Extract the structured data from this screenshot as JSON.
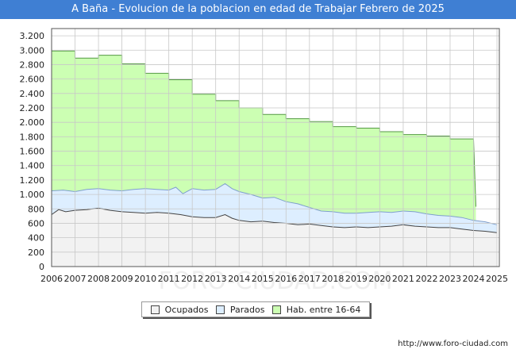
{
  "title": "A Baña - Evolucion de la poblacion en edad de Trabajar Febrero de 2025",
  "footer": {
    "url": "http://www.foro-ciudad.com"
  },
  "watermark": "FORO-CIUDAD.COM",
  "chart_data": {
    "type": "area",
    "title": "A Baña - Evolucion de la poblacion en edad de Trabajar Febrero de 2025",
    "xlabel": "",
    "ylabel": "",
    "xlim": [
      2006,
      2025.1
    ],
    "ylim": [
      0,
      3300
    ],
    "grid": true,
    "legend_position": "bottom",
    "x_ticks": [
      2006,
      2007,
      2008,
      2009,
      2010,
      2011,
      2012,
      2013,
      2014,
      2015,
      2016,
      2017,
      2018,
      2019,
      2020,
      2021,
      2022,
      2023,
      2024,
      2025
    ],
    "x_tick_labels": [
      "2006",
      "2007",
      "2008",
      "2009",
      "2010",
      "2011",
      "2012",
      "2013",
      "2014",
      "2015",
      "2016",
      "2017",
      "2018",
      "2019",
      "2020",
      "2021",
      "2022",
      "2023",
      "2024",
      "2025"
    ],
    "y_ticks": [
      0,
      200,
      400,
      600,
      800,
      1000,
      1200,
      1400,
      1600,
      1800,
      2000,
      2200,
      2400,
      2600,
      2800,
      3000,
      3200
    ],
    "y_tick_labels": [
      "0",
      "200",
      "400",
      "600",
      "800",
      "1.000",
      "1.200",
      "1.400",
      "1.600",
      "1.800",
      "2.000",
      "2.200",
      "2.400",
      "2.600",
      "2.800",
      "3.000",
      "3.200"
    ],
    "series": [
      {
        "name": "Hab. entre 16-64",
        "fill": "#ccffb3",
        "stroke": "#559944",
        "x": [
          2006,
          2007,
          2007,
          2008,
          2008,
          2009,
          2009,
          2010,
          2010,
          2011,
          2011,
          2012,
          2012,
          2013,
          2013,
          2014,
          2014,
          2015,
          2015,
          2016,
          2016,
          2017,
          2017,
          2018,
          2018,
          2019,
          2019,
          2020,
          2020,
          2021,
          2021,
          2022,
          2022,
          2023,
          2023,
          2024,
          2024,
          2024.1
        ],
        "y": [
          2990,
          2990,
          2890,
          2890,
          2930,
          2930,
          2810,
          2810,
          2680,
          2680,
          2590,
          2590,
          2390,
          2390,
          2300,
          2300,
          2200,
          2200,
          2110,
          2110,
          2050,
          2050,
          2010,
          2010,
          1940,
          1940,
          1920,
          1920,
          1870,
          1870,
          1830,
          1830,
          1810,
          1810,
          1770,
          1770,
          1760,
          830
        ]
      },
      {
        "name": "Parados",
        "fill": "#ddeeff",
        "stroke": "#7f9fcc",
        "x": [
          2006,
          2006.5,
          2007,
          2007.5,
          2008,
          2008.5,
          2009,
          2009.5,
          2010,
          2010.5,
          2011,
          2011.3,
          2011.6,
          2012,
          2012.5,
          2013,
          2013.4,
          2013.7,
          2014,
          2014.5,
          2015,
          2015.5,
          2016,
          2016.5,
          2017,
          2017.5,
          2018,
          2018.5,
          2019,
          2019.5,
          2020,
          2020.5,
          2021,
          2021.5,
          2022,
          2022.5,
          2023,
          2023.5,
          2024,
          2024.5,
          2025
        ],
        "y": [
          1050,
          1060,
          1040,
          1070,
          1080,
          1060,
          1050,
          1070,
          1080,
          1070,
          1060,
          1100,
          1010,
          1080,
          1060,
          1070,
          1150,
          1080,
          1040,
          1000,
          950,
          960,
          900,
          870,
          820,
          770,
          760,
          740,
          740,
          750,
          760,
          750,
          770,
          760,
          730,
          710,
          700,
          680,
          640,
          620,
          580
        ]
      },
      {
        "name": "Ocupados",
        "fill": "#f2f2f2",
        "stroke": "#444444",
        "x": [
          2006,
          2006.3,
          2006.6,
          2007,
          2007.5,
          2008,
          2008.5,
          2009,
          2009.5,
          2010,
          2010.5,
          2011,
          2011.5,
          2012,
          2012.5,
          2013,
          2013.4,
          2013.7,
          2014,
          2014.5,
          2015,
          2015.5,
          2016,
          2016.5,
          2017,
          2017.5,
          2018,
          2018.5,
          2019,
          2019.5,
          2020,
          2020.5,
          2021,
          2021.5,
          2022,
          2022.5,
          2023,
          2023.5,
          2024,
          2024.5,
          2025
        ],
        "y": [
          720,
          790,
          760,
          780,
          790,
          810,
          780,
          760,
          750,
          740,
          750,
          740,
          720,
          690,
          680,
          680,
          720,
          670,
          640,
          620,
          630,
          610,
          600,
          580,
          590,
          570,
          550,
          540,
          550,
          540,
          550,
          560,
          580,
          560,
          550,
          540,
          540,
          520,
          500,
          490,
          470
        ]
      }
    ]
  },
  "legend": {
    "items": [
      {
        "label": "Ocupados",
        "color": "#f2f2f2"
      },
      {
        "label": "Parados",
        "color": "#ddeeff"
      },
      {
        "label": "Hab. entre 16-64",
        "color": "#ccffb3"
      }
    ]
  }
}
